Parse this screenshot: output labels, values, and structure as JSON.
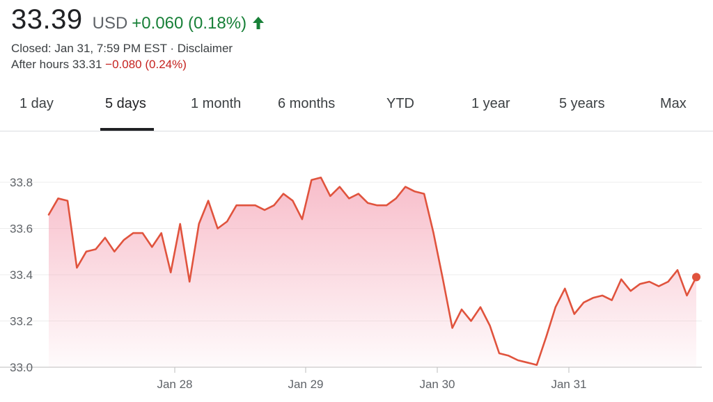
{
  "header": {
    "price": "33.39",
    "currency": "USD",
    "change": "+0.060 (0.18%)",
    "change_color": "#188038",
    "closed_text": "Closed: Jan 31, 7:59 PM EST · Disclaimer",
    "after_hours_label": "After hours 33.31",
    "after_hours_change": "−0.080 (0.24%)",
    "after_hours_color": "#c5221f"
  },
  "tabs": [
    {
      "label": "1 day"
    },
    {
      "label": "5 days",
      "active": true
    },
    {
      "label": "1 month"
    },
    {
      "label": "6 months"
    },
    {
      "label": "YTD"
    },
    {
      "label": "1 year"
    },
    {
      "label": "5 years"
    },
    {
      "label": "Max"
    }
  ],
  "chart_data": {
    "type": "area",
    "line_color": "#e0533d",
    "fill_color": "#f5a7b8",
    "ylim": [
      33.0,
      33.85
    ],
    "y_ticks": [
      "33.0",
      "33.2",
      "33.4",
      "33.6",
      "33.8"
    ],
    "x_ticks": [
      "Jan 28",
      "Jan 29",
      "Jan 30",
      "Jan 31"
    ],
    "grid": true,
    "series": [
      {
        "values": [
          33.66,
          33.73,
          33.72,
          33.43,
          33.5,
          33.51,
          33.56,
          33.5,
          33.55,
          33.58,
          33.58,
          33.52,
          33.58,
          33.41,
          33.62,
          33.37,
          33.62,
          33.72,
          33.6,
          33.63,
          33.7,
          33.7,
          33.7,
          33.68,
          33.7,
          33.75,
          33.72,
          33.64,
          33.81,
          33.82,
          33.74,
          33.78,
          33.73,
          33.75,
          33.71,
          33.7,
          33.7,
          33.73,
          33.78,
          33.76,
          33.75,
          33.58,
          33.38,
          33.17,
          33.25,
          33.2,
          33.26,
          33.18,
          33.06,
          33.05,
          33.03,
          33.02,
          33.01,
          33.13,
          33.26,
          33.34,
          33.23,
          33.28,
          33.3,
          33.31,
          33.29,
          33.38,
          33.33,
          33.36,
          33.37,
          33.35,
          33.37,
          33.42,
          33.31,
          33.39
        ]
      }
    ]
  }
}
